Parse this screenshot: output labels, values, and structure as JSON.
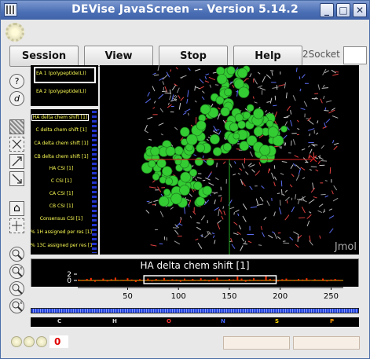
{
  "window": {
    "title": "DEVise JavaScreen -- Version 5.14.2",
    "minimize_glyph": "_",
    "maximize_glyph": "□",
    "close_glyph": "✕"
  },
  "menu": {
    "session": "Session",
    "view": "View",
    "stop": "Stop",
    "help": "Help",
    "socket_label": "Socket",
    "socket_num": "2"
  },
  "tools": [
    {
      "name": "help-icon",
      "glyph": "?"
    },
    {
      "name": "drill-down-icon",
      "glyph": "d"
    },
    {
      "name": "select-rect-icon",
      "glyph": ""
    },
    {
      "name": "zoom-box-icon",
      "glyph": ""
    },
    {
      "name": "resize-icon",
      "glyph": ""
    },
    {
      "name": "resize-alt-icon",
      "glyph": ""
    },
    {
      "name": "home-icon",
      "glyph": "⌂"
    },
    {
      "name": "cursor-icon",
      "glyph": ""
    },
    {
      "name": "zoom-in-icon",
      "glyph": ""
    },
    {
      "name": "zoom-in-x-icon",
      "glyph": ""
    },
    {
      "name": "zoom-out-icon",
      "glyph": ""
    },
    {
      "name": "zoom-out-x-icon",
      "glyph": ""
    }
  ],
  "entity_legend": [
    "EA 1 (polypeptide(L))",
    "EA 2 (polypeptide(L))"
  ],
  "data_legend": [
    "HA delta chem shift [1]",
    "C delta chem shift [1]",
    "CA delta chem shift [1]",
    "CB delta chem shift [1]",
    "HA CSI [1]",
    "C CSI [1]",
    "CA CSI [1]",
    "CB CSI [1]",
    "Consensus CSI [1]",
    "% 1H assigned per res [1]",
    "% 13C assigned per res [1]"
  ],
  "mol_view": {
    "label": "Jmol",
    "cursor_color": "#dd2222"
  },
  "chart_data": {
    "type": "bar",
    "title": "HA delta chem shift [1]",
    "xlim": [
      1,
      262
    ],
    "ylim": [
      -1.5,
      2.5
    ],
    "xticks": [
      50,
      100,
      150,
      200,
      250
    ],
    "yticks": [
      2,
      0
    ],
    "selection_range": [
      66,
      196
    ],
    "x": [
      2,
      6,
      10,
      14,
      18,
      22,
      26,
      30,
      34,
      38,
      42,
      46,
      50,
      54,
      58,
      62,
      66,
      70,
      74,
      78,
      82,
      86,
      90,
      94,
      98,
      102,
      106,
      110,
      114,
      118,
      122,
      126,
      130,
      134,
      138,
      142,
      146,
      150,
      154,
      158,
      162,
      166,
      170,
      174,
      178,
      182,
      186,
      190,
      194,
      198,
      202,
      206,
      210,
      214,
      218,
      222,
      226,
      230,
      234,
      238,
      242,
      246,
      250,
      254,
      258
    ],
    "values": [
      0.3,
      -0.2,
      0.5,
      0.8,
      -0.4,
      0.2,
      0.6,
      -0.3,
      0.4,
      0.9,
      0.1,
      -0.2,
      0.7,
      0.3,
      -0.5,
      0.4,
      0.2,
      0.6,
      -0.3,
      0.5,
      0.1,
      0.8,
      -0.2,
      0.4,
      0.3,
      -0.4,
      0.6,
      0.2,
      0.5,
      -0.1,
      0.7,
      0.3,
      -0.3,
      0.4,
      0.9,
      0.2,
      -0.2,
      0.5,
      0.3,
      1.2,
      0.6,
      -0.4,
      0.3,
      0.7,
      0.2,
      -0.2,
      1.4,
      0.5,
      0.3,
      -0.3,
      0.4,
      0.6,
      0.2,
      -0.2,
      0.5,
      0.3,
      0.7,
      -0.1,
      0.4,
      0.2,
      0.6,
      -0.3,
      0.3,
      0.5,
      0.2
    ]
  },
  "residue_strip": [
    {
      "label": "C",
      "color": "#dddddd"
    },
    {
      "label": "H",
      "color": "#dddddd"
    },
    {
      "label": "O",
      "color": "#ff3333"
    },
    {
      "label": "N",
      "color": "#4466ff"
    },
    {
      "label": "S",
      "color": "#ffdd00"
    },
    {
      "label": "P",
      "color": "#ff9900"
    }
  ],
  "status": {
    "error_count": "0"
  }
}
